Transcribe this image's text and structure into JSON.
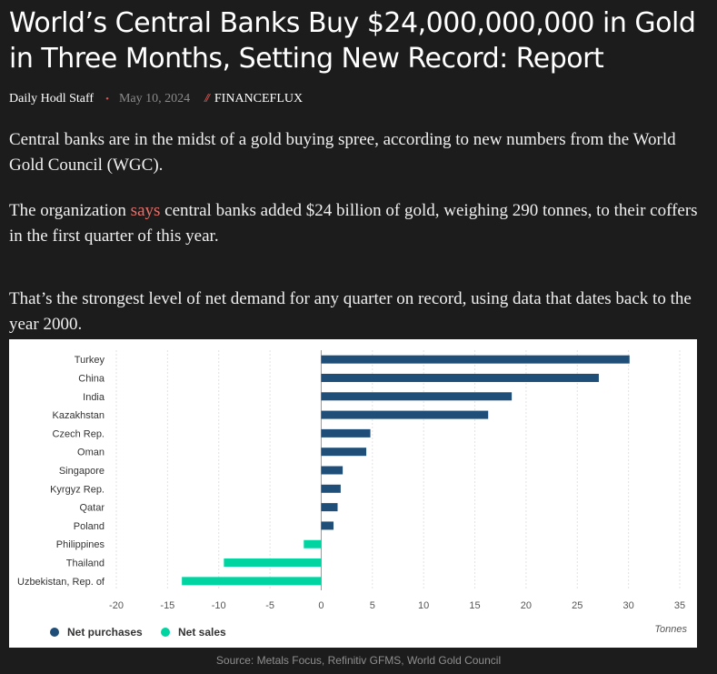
{
  "article": {
    "title": "World’s Central Banks Buy $24,000,000,000 in Gold in Three Months, Setting New Record: Report",
    "author": "Daily Hodl Staff",
    "date": "May 10, 2024",
    "category": "FINANCEFLUX",
    "separator_dot": "•",
    "separator_slashes": "//",
    "paragraph1": "Central banks are in the midst of a gold buying spree, according to new numbers from the World Gold Council (WGC).",
    "paragraph2_before": "The organization ",
    "paragraph2_link": "says",
    "paragraph2_after": " central banks added $24 billion of gold, weighing 290 tonnes, to their coffers in the first quarter of this year.",
    "paragraph3": "That’s the strongest level of net demand for any quarter on record, using data that dates back to the year 2000.",
    "source": "Source: Metals Focus, Refinitiv GFMS, World Gold Council"
  },
  "chart_data": {
    "type": "bar",
    "orientation": "horizontal",
    "categories": [
      "Turkey",
      "China",
      "India",
      "Kazakhstan",
      "Czech Rep.",
      "Oman",
      "Singapore",
      "Kyrgyz Rep.",
      "Qatar",
      "Poland",
      "Philippines",
      "Thailand",
      "Uzbekistan, Rep. of"
    ],
    "values": [
      30.1,
      27.1,
      18.6,
      16.3,
      4.8,
      4.4,
      2.1,
      1.9,
      1.6,
      1.2,
      -1.7,
      -9.5,
      -13.6
    ],
    "xlim": [
      -20,
      35
    ],
    "xticks": [
      -20,
      -15,
      -10,
      -5,
      0,
      5,
      10,
      15,
      20,
      25,
      30,
      35
    ],
    "xlabel": "Tonnes",
    "grid": "vertical",
    "legend_placement": "bottom-left",
    "series": [
      {
        "name": "Net purchases",
        "color": "#1f4e79"
      },
      {
        "name": "Net sales",
        "color": "#00d4a0"
      }
    ]
  }
}
